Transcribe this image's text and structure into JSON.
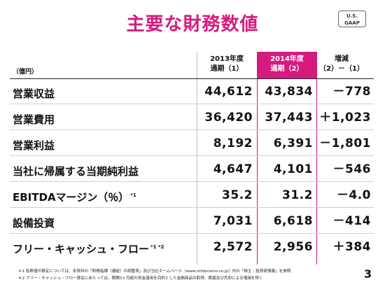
{
  "title": "主要な財務数値",
  "badge": {
    "line1": "U.S.",
    "line2": "GAAP"
  },
  "unit": "（億円）",
  "columns": [
    {
      "line1": "2013年度",
      "line2": "通期（1）"
    },
    {
      "line1": "2014年度",
      "line2": "通期（2）"
    },
    {
      "line1": "増減",
      "line2": "（2）－（1）"
    }
  ],
  "rows": [
    {
      "label": "営業収益",
      "note": "",
      "v1": "44,612",
      "v2": "43,834",
      "v3": "－778"
    },
    {
      "label": "営業費用",
      "note": "",
      "v1": "36,420",
      "v2": "37,443",
      "v3": "＋1,023"
    },
    {
      "label": "営業利益",
      "note": "",
      "v1": "8,192",
      "v2": "6,391",
      "v3": "－1,801"
    },
    {
      "label": "当社に帰属する当期純利益",
      "note": "",
      "v1": "4,647",
      "v2": "4,101",
      "v3": "－546"
    },
    {
      "label": "EBITDAマージン（％）",
      "note": "*1",
      "v1": "35.2",
      "v2": "31.2",
      "v3": "－4.0"
    },
    {
      "label": "設備投資",
      "note": "",
      "v1": "7,031",
      "v2": "6,618",
      "v3": "－414"
    },
    {
      "label": "フリー・キャッシュ・フロー",
      "note": "*1 *2",
      "v1": "2,572",
      "v2": "2,956",
      "v3": "＋384"
    }
  ],
  "footnotes": [
    "＊1 各数値の算定については、本資料の「財務指標（連結）の調整表」及び当社ホームページ（www.nttdocomo.co.jp）内の「株主・投資家情報」を参照",
    "＊2 フリー・キャッシュ・フロー算定にあたっては、期間3ヶ月超の資金運用を目的とした金融商品の取得、償還及び売却による増減を除く"
  ],
  "page_number": "3",
  "colors": {
    "accent": "#d51b7e"
  }
}
